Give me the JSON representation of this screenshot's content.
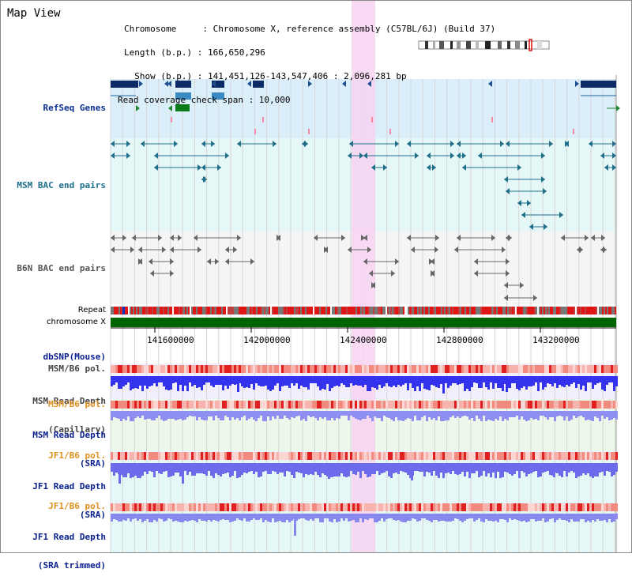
{
  "header": {
    "title": "Map View",
    "info_lines": [
      "Chromosome     : Chromosome X, reference assembly (C57BL/6J) (Build 37)",
      "Length (b.p.) : 166,650,296",
      "  Show (b.p.) : 141,451,126-143,547,406 : 2,096,281 bp",
      "Read coverage check span : 10,000"
    ]
  },
  "tracks": {
    "refseq": {
      "label": "RefSeq Genes",
      "color": "#0b2f8f"
    },
    "msm_bac": {
      "label": "MSM BAC end pairs",
      "color": "#1f6f8b"
    },
    "b6n_bac": {
      "label": "B6N BAC end pairs",
      "color": "#555555"
    },
    "repeat": {
      "label": "Repeat"
    },
    "chromosome": {
      "label": "chromosome X"
    },
    "dbsnp": {
      "label": "dbSNP(Mouse)",
      "color": "#0a1f8f"
    },
    "msm_b6_pol_1": {
      "label": "MSM/B6 pol.",
      "color": "#444444"
    },
    "msm_depth_cap": {
      "label_lines": [
        "MSM Read Depth",
        "(Capillary)"
      ],
      "color": "#444444"
    },
    "msm_b6_pol_2": {
      "label": "MSM/B6 pol.",
      "color": "#e09020"
    },
    "msm_depth_sra": {
      "label_lines": [
        "MSM Read Depth",
        "(SRA)"
      ],
      "color": "#0a1f8f"
    },
    "jf1_b6_pol_1": {
      "label": "JF1/B6 pol.",
      "color": "#e09020"
    },
    "jf1_depth_sra": {
      "label_lines": [
        "JF1 Read Depth",
        "(SRA)"
      ],
      "color": "#0a1f8f"
    },
    "jf1_b6_pol_2": {
      "label": "JF1/B6 pol.",
      "color": "#e09020"
    },
    "jf1_depth_trim": {
      "label_lines": [
        "JF1 Read Depth",
        "(SRA trimmed)"
      ],
      "color": "#0a1f8f"
    }
  },
  "axis": {
    "ticks": [
      "141600000",
      "142000000",
      "142400000",
      "142800000",
      "143200000"
    ]
  },
  "colors": {
    "highlight": "#f7d3f2",
    "chromosome": "#006400",
    "refseq_bg": "#dbeffa",
    "bac_bg": "#e6f7f7",
    "pol": "#f28a80",
    "depth": "#3333ee",
    "depth_light": "#8f8ff2"
  }
}
